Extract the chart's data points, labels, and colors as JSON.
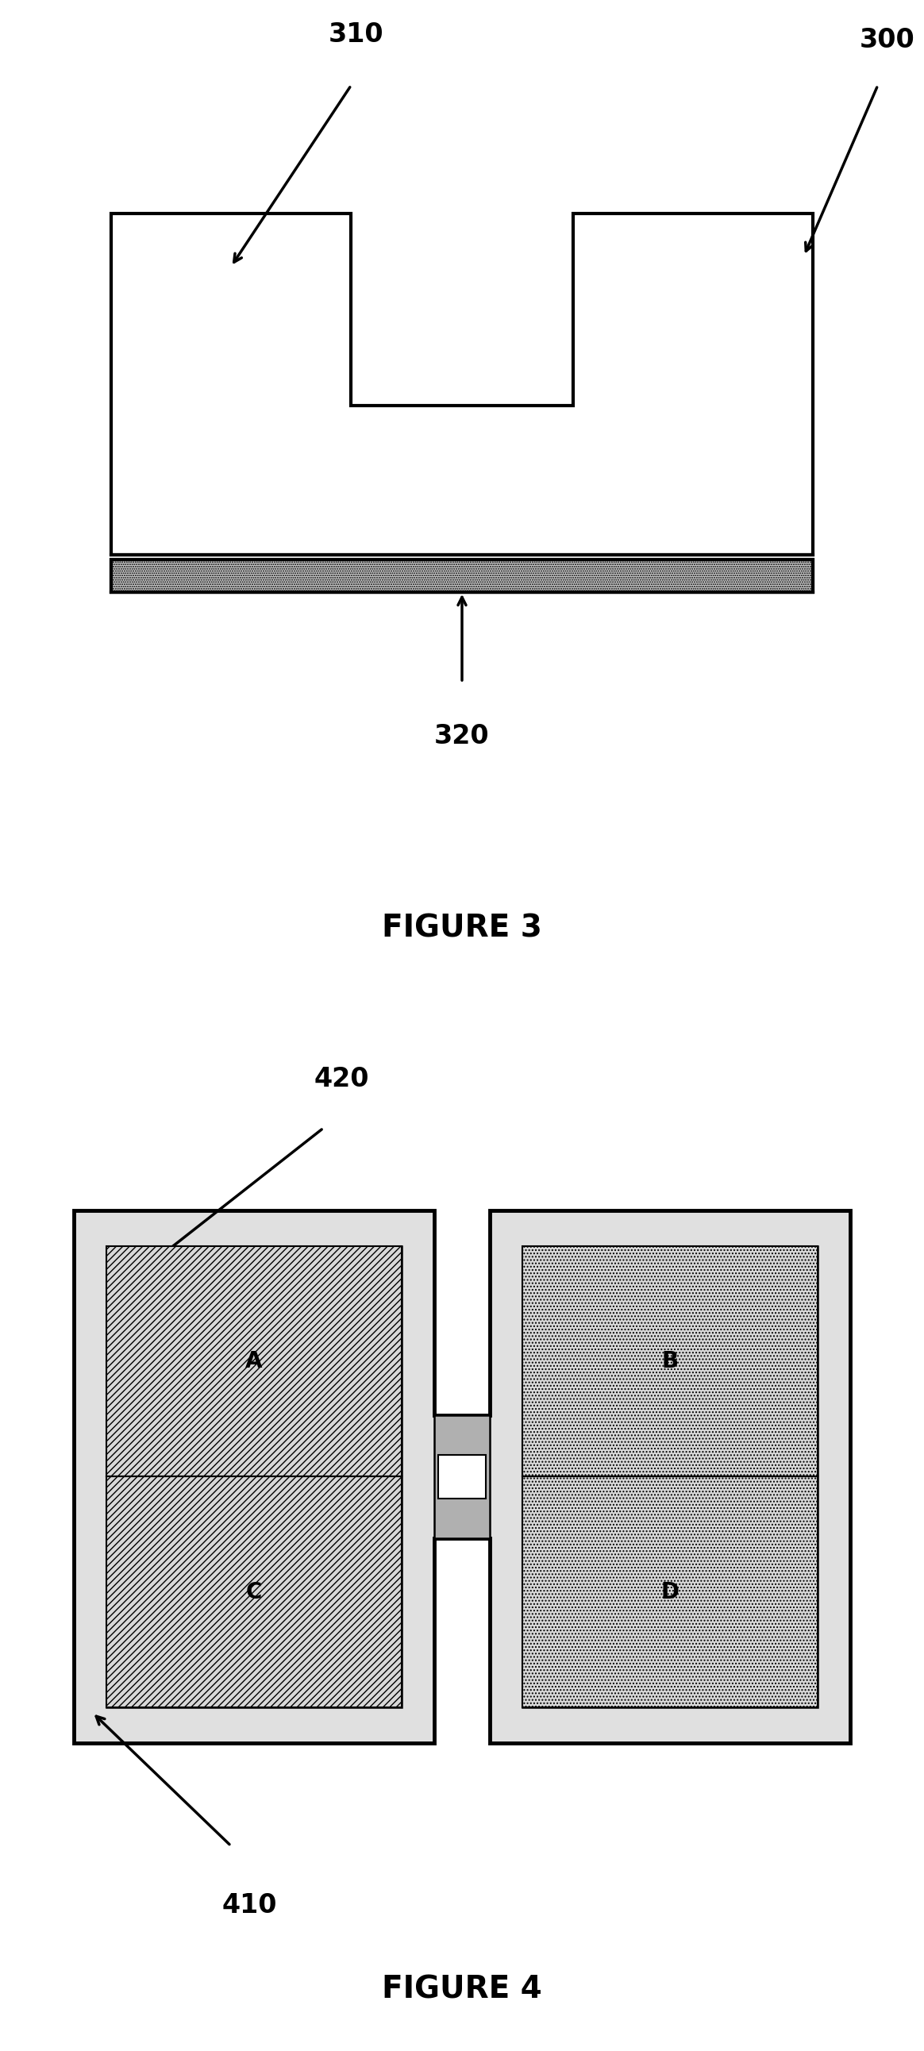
{
  "bg_color": "#ffffff",
  "fig_width": 11.64,
  "fig_height": 25.84,
  "fig3_title": "FIGURE 3",
  "fig4_title": "FIGURE 4",
  "label_300": "300",
  "label_310": "310",
  "label_320": "320",
  "label_410": "410",
  "label_420": "420",
  "label_A": "A",
  "label_B": "B",
  "label_C": "C",
  "label_D": "D",
  "black": "#000000",
  "white": "#ffffff",
  "light_gray": "#e0e0e0",
  "dot_fill": "#d8d8d8",
  "strip_dot_color": "#aaaaaa"
}
